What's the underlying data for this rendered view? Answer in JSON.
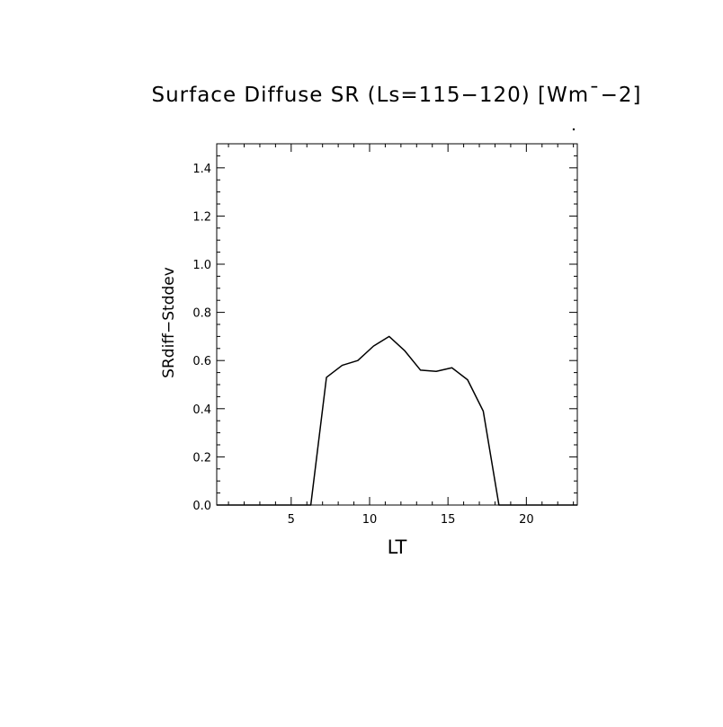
{
  "chart_data": {
    "type": "line",
    "title": "Surface Diffuse SR (Ls=115−120) [Wm¯−2]",
    "xlabel": "LT",
    "ylabel": "SRdiff−Stddev",
    "xlim": [
      0.25,
      23.25
    ],
    "ylim": [
      0,
      1.5
    ],
    "x_ticks": [
      5,
      10,
      15,
      20
    ],
    "x_tick_labels": [
      "5",
      "10",
      "15",
      "20"
    ],
    "y_ticks": [
      0.0,
      0.2,
      0.4,
      0.6,
      0.8,
      1.0,
      1.2,
      1.4
    ],
    "y_tick_labels": [
      "0.0",
      "0.2",
      "0.4",
      "0.6",
      "0.8",
      "1.0",
      "1.2",
      "1.4"
    ],
    "x_minor_step": 1,
    "y_minor_step": 0.05,
    "grid": false,
    "legend": "none",
    "series": [
      {
        "color": "#000000",
        "x": [
          0.25,
          1.25,
          2.25,
          3.25,
          4.25,
          5.25,
          6.25,
          7.25,
          8.25,
          9.25,
          10.25,
          11.25,
          12.25,
          13.25,
          14.25,
          15.25,
          16.25,
          17.25,
          18.25,
          19.25,
          20.25,
          21.25,
          22.25,
          23.25
        ],
        "y": [
          0,
          0,
          0,
          0,
          0,
          0,
          0,
          0.53,
          0.58,
          0.6,
          0.66,
          0.7,
          0.64,
          0.56,
          0.555,
          0.57,
          0.52,
          0.39,
          0,
          0,
          0,
          0,
          0,
          0
        ]
      }
    ]
  }
}
